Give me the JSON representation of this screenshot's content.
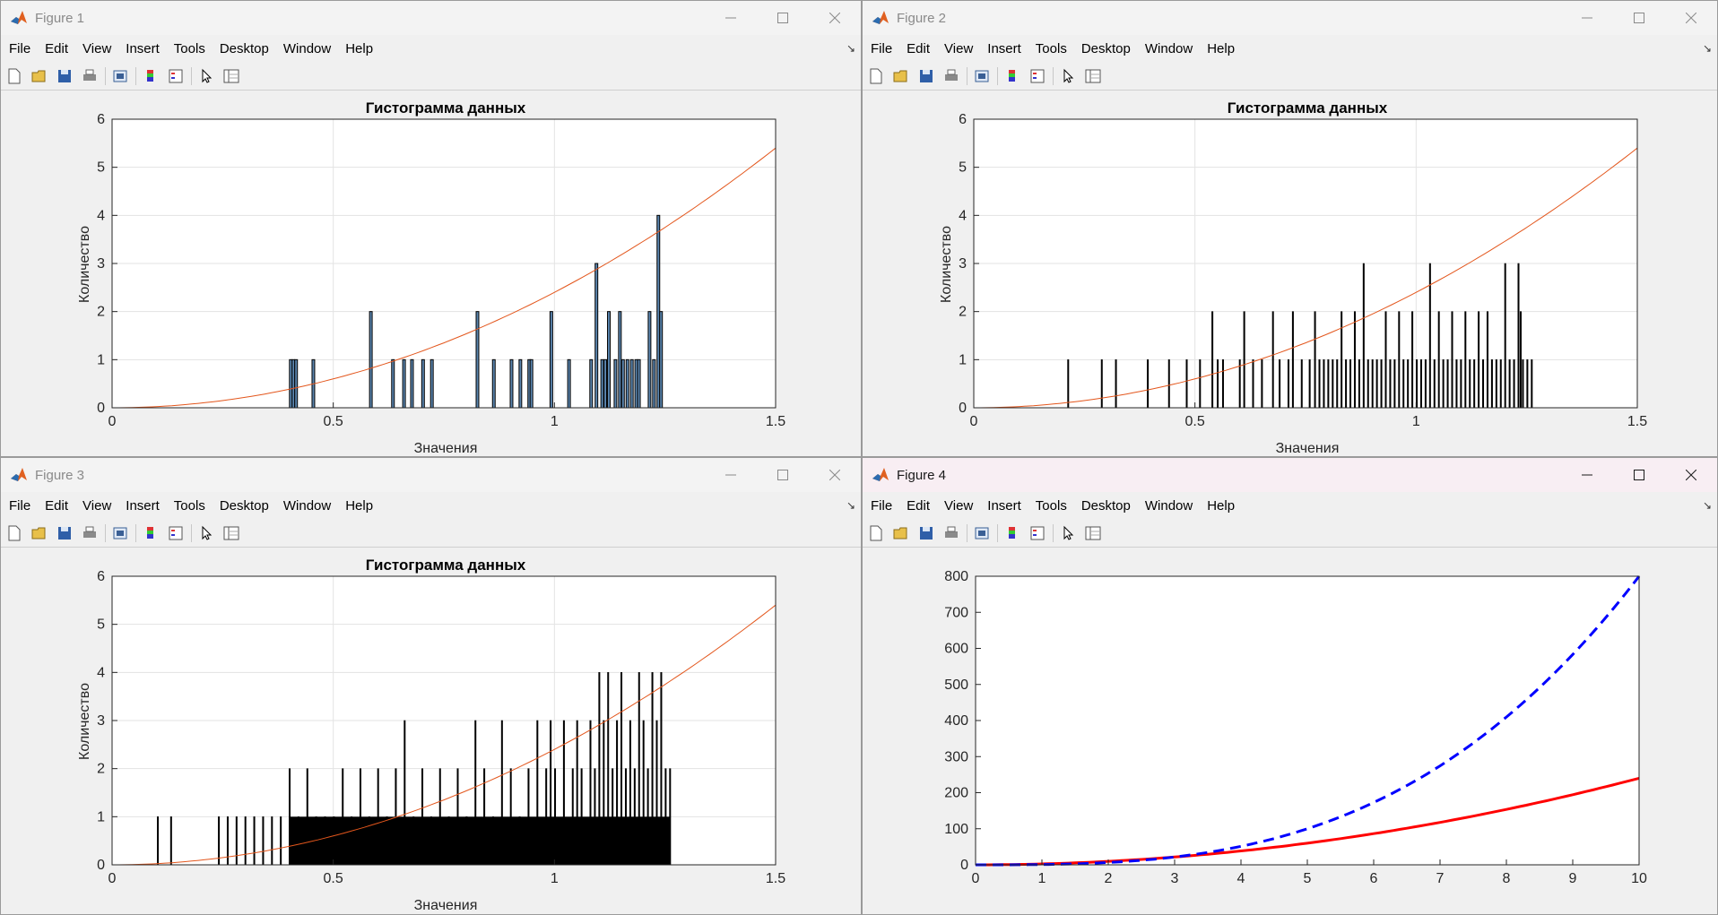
{
  "menu_items": [
    "File",
    "Edit",
    "View",
    "Insert",
    "Tools",
    "Desktop",
    "Window",
    "Help"
  ],
  "icons": {
    "app": "matlab-logo-icon",
    "toolbar": [
      "new-figure-icon",
      "open-file-icon",
      "save-icon",
      "print-icon",
      "print-preview-icon",
      "colorbar-icon",
      "legend-icon",
      "pointer-icon",
      "property-inspector-icon"
    ],
    "window": [
      "minimize-icon",
      "maximize-icon",
      "close-icon"
    ]
  },
  "colors": {
    "bar_face": "#5b86b0",
    "bar_edge": "#000000",
    "curve": "#e3561c",
    "line_solid": "#ff0000",
    "line_dashed": "#0000ff"
  },
  "figures": [
    {
      "title": "Figure 1",
      "chart_data": {
        "type": "bar",
        "title": "Гистограмма данных",
        "xlabel": "Значения",
        "ylabel": "Количество",
        "xlim": [
          0,
          1.5
        ],
        "ylim": [
          0,
          6
        ],
        "xticks": [
          0,
          0.5,
          1,
          1.5
        ],
        "xtick_labels": [
          "0",
          "0.5",
          "1",
          "1.5"
        ],
        "yticks": [
          0,
          1,
          2,
          3,
          4,
          5,
          6
        ],
        "grid": true,
        "bin_width": 0.006,
        "bins": [
          [
            0.401,
            1
          ],
          [
            0.407,
            1
          ],
          [
            0.413,
            1
          ],
          [
            0.452,
            1
          ],
          [
            0.582,
            2
          ],
          [
            0.632,
            1
          ],
          [
            0.657,
            1
          ],
          [
            0.675,
            1
          ],
          [
            0.7,
            1
          ],
          [
            0.72,
            1
          ],
          [
            0.823,
            2
          ],
          [
            0.86,
            1
          ],
          [
            0.9,
            1
          ],
          [
            0.92,
            1
          ],
          [
            0.94,
            1
          ],
          [
            0.945,
            1
          ],
          [
            0.99,
            2
          ],
          [
            1.03,
            1
          ],
          [
            1.08,
            1
          ],
          [
            1.092,
            3
          ],
          [
            1.105,
            1
          ],
          [
            1.112,
            1
          ],
          [
            1.12,
            2
          ],
          [
            1.135,
            1
          ],
          [
            1.145,
            2
          ],
          [
            1.152,
            1
          ],
          [
            1.162,
            1
          ],
          [
            1.172,
            1
          ],
          [
            1.182,
            1
          ],
          [
            1.188,
            1
          ],
          [
            1.212,
            2
          ],
          [
            1.222,
            1
          ],
          [
            1.232,
            4
          ],
          [
            1.238,
            2
          ]
        ],
        "curve": {
          "type": "line",
          "function": "y = 2.4*x^2",
          "x_range": [
            0,
            1.5
          ]
        }
      }
    },
    {
      "title": "Figure 2",
      "chart_data": {
        "type": "bar",
        "title": "Гистограмма данных",
        "xlabel": "Значения",
        "ylabel": "Количество",
        "xlim": [
          0,
          1.5
        ],
        "ylim": [
          0,
          6
        ],
        "xticks": [
          0,
          0.5,
          1,
          1.5
        ],
        "xtick_labels": [
          "0",
          "0.5",
          "1",
          "1.5"
        ],
        "yticks": [
          0,
          1,
          2,
          3,
          4,
          5,
          6
        ],
        "grid": true,
        "bin_width": 0.0012,
        "bins": [
          [
            0.212,
            1
          ],
          [
            0.288,
            1
          ],
          [
            0.32,
            1
          ],
          [
            0.392,
            1
          ],
          [
            0.44,
            1
          ],
          [
            0.48,
            1
          ],
          [
            0.51,
            1
          ],
          [
            0.538,
            2
          ],
          [
            0.55,
            1
          ],
          [
            0.562,
            1
          ],
          [
            0.6,
            1
          ],
          [
            0.61,
            2
          ],
          [
            0.63,
            1
          ],
          [
            0.65,
            1
          ],
          [
            0.675,
            2
          ],
          [
            0.69,
            1
          ],
          [
            0.71,
            1
          ],
          [
            0.72,
            2
          ],
          [
            0.74,
            1
          ],
          [
            0.758,
            1
          ],
          [
            0.77,
            2
          ],
          [
            0.78,
            1
          ],
          [
            0.79,
            1
          ],
          [
            0.8,
            1
          ],
          [
            0.81,
            1
          ],
          [
            0.82,
            1
          ],
          [
            0.83,
            2
          ],
          [
            0.84,
            1
          ],
          [
            0.85,
            1
          ],
          [
            0.86,
            2
          ],
          [
            0.87,
            1
          ],
          [
            0.88,
            3
          ],
          [
            0.89,
            1
          ],
          [
            0.9,
            1
          ],
          [
            0.91,
            1
          ],
          [
            0.92,
            1
          ],
          [
            0.93,
            2
          ],
          [
            0.94,
            1
          ],
          [
            0.95,
            1
          ],
          [
            0.96,
            2
          ],
          [
            0.97,
            1
          ],
          [
            0.98,
            1
          ],
          [
            0.99,
            2
          ],
          [
            1.0,
            1
          ],
          [
            1.01,
            1
          ],
          [
            1.02,
            1
          ],
          [
            1.03,
            3
          ],
          [
            1.04,
            1
          ],
          [
            1.05,
            2
          ],
          [
            1.06,
            1
          ],
          [
            1.07,
            1
          ],
          [
            1.08,
            2
          ],
          [
            1.09,
            1
          ],
          [
            1.1,
            1
          ],
          [
            1.11,
            2
          ],
          [
            1.12,
            1
          ],
          [
            1.13,
            1
          ],
          [
            1.14,
            2
          ],
          [
            1.15,
            1
          ],
          [
            1.16,
            2
          ],
          [
            1.17,
            1
          ],
          [
            1.18,
            1
          ],
          [
            1.19,
            1
          ],
          [
            1.2,
            3
          ],
          [
            1.21,
            1
          ],
          [
            1.22,
            1
          ],
          [
            1.23,
            3
          ],
          [
            1.235,
            2
          ],
          [
            1.24,
            1
          ],
          [
            1.25,
            1
          ],
          [
            1.26,
            1
          ]
        ],
        "curve": {
          "type": "line",
          "function": "y = 2.4*x^2",
          "x_range": [
            0,
            1.5
          ]
        }
      }
    },
    {
      "title": "Figure 3",
      "chart_data": {
        "type": "bar",
        "title": "Гистограмма данных",
        "xlabel": "Значения",
        "ylabel": "Количество",
        "xlim": [
          0,
          1.5
        ],
        "ylim": [
          0,
          6
        ],
        "xticks": [
          0,
          0.5,
          1,
          1.5
        ],
        "xtick_labels": [
          "0",
          "0.5",
          "1",
          "1.5"
        ],
        "yticks": [
          0,
          1,
          2,
          3,
          4,
          5,
          6
        ],
        "grid": true,
        "bin_width": 0.0012,
        "bins": [
          [
            0.102,
            1
          ],
          [
            0.132,
            1
          ],
          [
            0.24,
            1
          ],
          [
            0.26,
            1
          ],
          [
            0.28,
            1
          ],
          [
            0.3,
            1
          ],
          [
            0.32,
            1
          ],
          [
            0.34,
            1
          ],
          [
            0.36,
            1
          ],
          [
            0.38,
            1
          ],
          [
            0.4,
            2
          ],
          [
            0.42,
            1
          ],
          [
            0.44,
            2
          ],
          [
            0.46,
            1
          ],
          [
            0.48,
            1
          ],
          [
            0.5,
            1
          ],
          [
            0.52,
            2
          ],
          [
            0.54,
            1
          ],
          [
            0.56,
            2
          ],
          [
            0.58,
            1
          ],
          [
            0.6,
            2
          ],
          [
            0.62,
            1
          ],
          [
            0.64,
            2
          ],
          [
            0.66,
            3
          ],
          [
            0.68,
            1
          ],
          [
            0.7,
            2
          ],
          [
            0.72,
            1
          ],
          [
            0.74,
            2
          ],
          [
            0.76,
            1
          ],
          [
            0.78,
            2
          ],
          [
            0.8,
            1
          ],
          [
            0.82,
            3
          ],
          [
            0.84,
            2
          ],
          [
            0.86,
            1
          ],
          [
            0.88,
            3
          ],
          [
            0.9,
            2
          ],
          [
            0.92,
            1
          ],
          [
            0.94,
            2
          ],
          [
            0.96,
            3
          ],
          [
            0.98,
            2
          ],
          [
            0.99,
            3
          ],
          [
            1.0,
            2
          ],
          [
            1.02,
            3
          ],
          [
            1.04,
            2
          ],
          [
            1.05,
            3
          ],
          [
            1.06,
            2
          ],
          [
            1.08,
            3
          ],
          [
            1.09,
            2
          ],
          [
            1.1,
            4
          ],
          [
            1.11,
            3
          ],
          [
            1.12,
            4
          ],
          [
            1.13,
            2
          ],
          [
            1.14,
            3
          ],
          [
            1.15,
            4
          ],
          [
            1.16,
            2
          ],
          [
            1.17,
            3
          ],
          [
            1.18,
            2
          ],
          [
            1.19,
            4
          ],
          [
            1.2,
            3
          ],
          [
            1.21,
            2
          ],
          [
            1.22,
            4
          ],
          [
            1.23,
            3
          ],
          [
            1.24,
            4
          ],
          [
            1.25,
            2
          ],
          [
            1.26,
            2
          ]
        ],
        "dense_start": 0.4,
        "dense_end": 1.26,
        "curve": {
          "type": "line",
          "function": "y = 2.4*x^2",
          "x_range": [
            0,
            1.5
          ]
        }
      }
    },
    {
      "title": "Figure 4",
      "active": true,
      "chart_data": {
        "type": "line",
        "xlim": [
          0,
          10
        ],
        "ylim": [
          0,
          800
        ],
        "xticks": [
          0,
          1,
          2,
          3,
          4,
          5,
          6,
          7,
          8,
          9,
          10
        ],
        "yticks": [
          0,
          100,
          200,
          300,
          400,
          500,
          600,
          700,
          800
        ],
        "grid": false,
        "series": [
          {
            "style": "solid",
            "color": "#ff0000",
            "x": [
              0,
              1,
              2,
              3,
              4,
              5,
              6,
              7,
              8,
              9,
              10
            ],
            "y": [
              0,
              2.4,
              9.6,
              21.6,
              38.4,
              60,
              86.4,
              117.6,
              153.6,
              194.4,
              240
            ]
          },
          {
            "style": "dashed",
            "color": "#0000ff",
            "x": [
              0,
              1,
              2,
              3,
              4,
              5,
              6,
              7,
              8,
              9,
              10
            ],
            "y": [
              0,
              0.8,
              6.4,
              21.6,
              51.2,
              100,
              172.8,
              274.4,
              409.6,
              583.2,
              800
            ]
          }
        ]
      }
    }
  ]
}
